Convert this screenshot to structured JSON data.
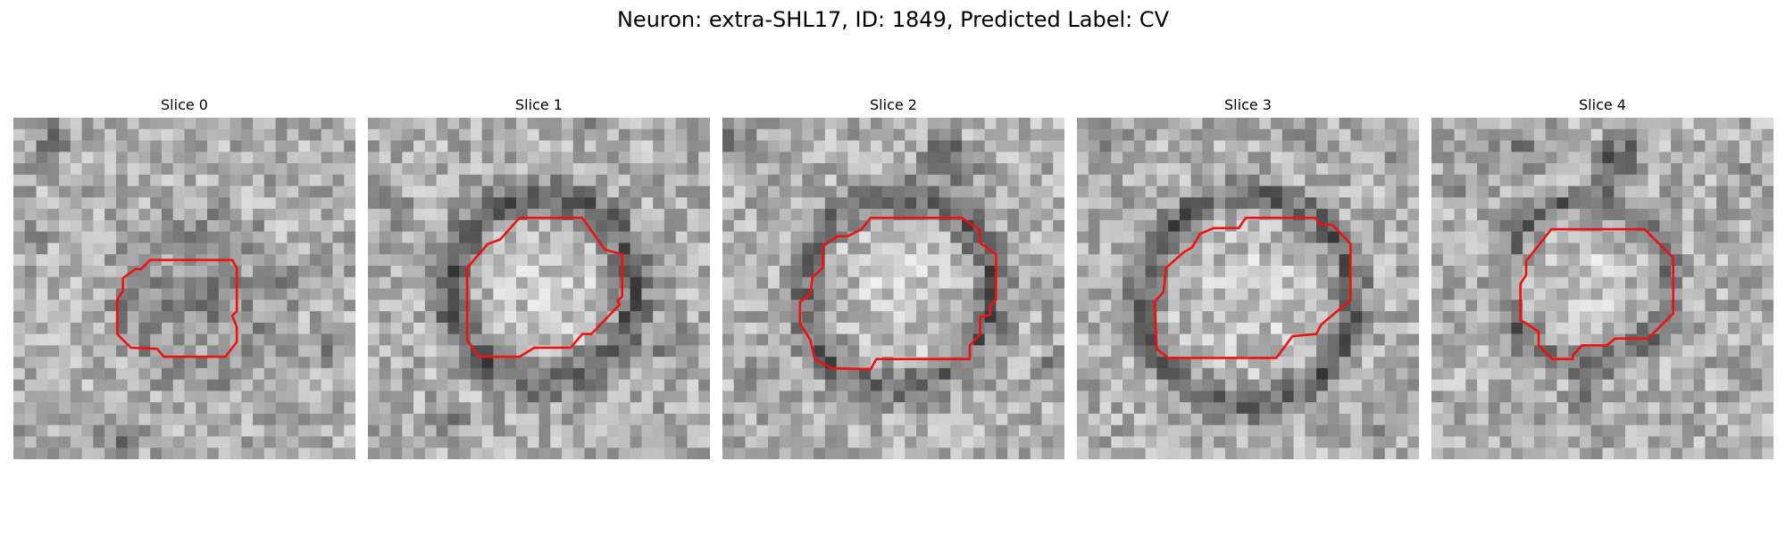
{
  "figure": {
    "title": "Neuron: extra-SHL17, ID: 1849, Predicted Label: CV"
  },
  "panels": [
    {
      "title": "Slice 0"
    },
    {
      "title": "Slice 1"
    },
    {
      "title": "Slice 2"
    },
    {
      "title": "Slice 3"
    },
    {
      "title": "Slice 4"
    }
  ],
  "colors": {
    "contour": "#ee1111",
    "background": "#ffffff"
  }
}
